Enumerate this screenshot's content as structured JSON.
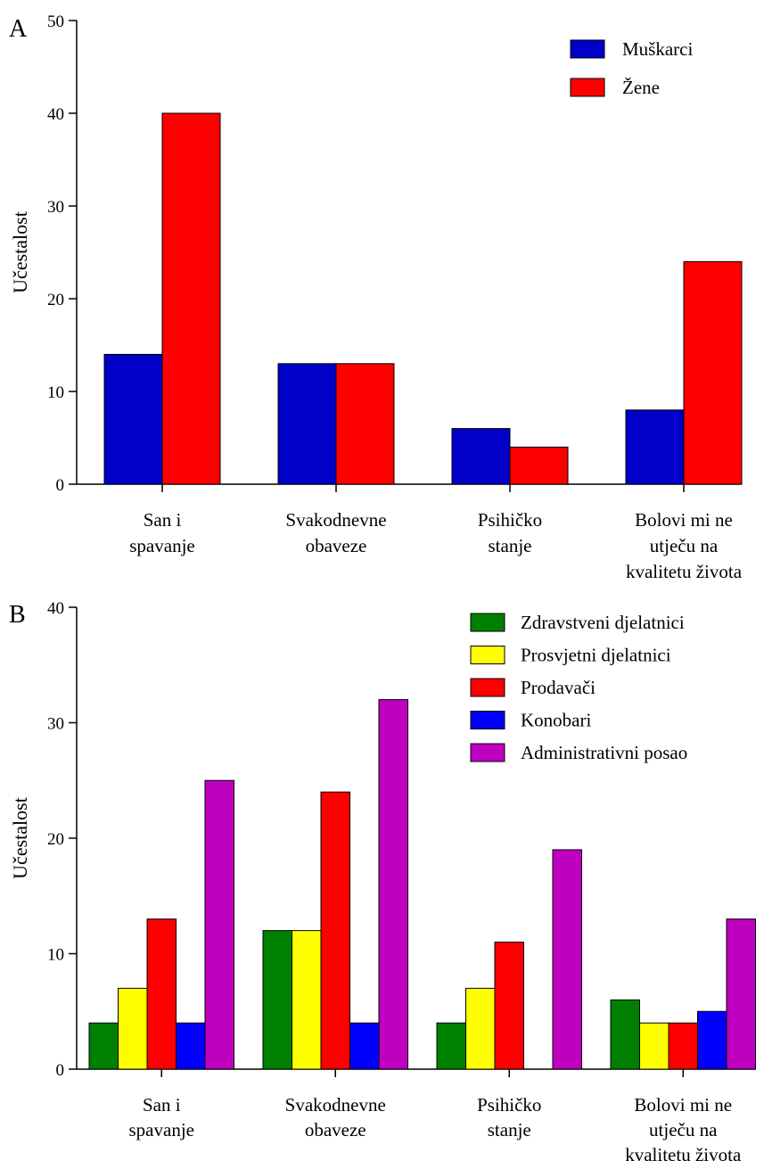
{
  "chart_data": [
    {
      "panel_label": "A",
      "type": "bar",
      "categories": [
        [
          "San i",
          "spavanje"
        ],
        [
          "Svakodnevne",
          "obaveze"
        ],
        [
          "Psihičko",
          "stanje"
        ],
        [
          "Bolovi mi ne",
          "utječu na",
          "kvalitetu života"
        ]
      ],
      "series": [
        {
          "name": "Muškarci",
          "color": "#0000c8",
          "values": [
            14,
            13,
            6,
            8
          ]
        },
        {
          "name": "Žene",
          "color": "#ff0000",
          "values": [
            40,
            13,
            4,
            24
          ]
        }
      ],
      "ylabel": "Učestalost",
      "ylim": [
        0,
        50
      ],
      "yticks": [
        0,
        10,
        20,
        30,
        40,
        50
      ],
      "legend": "top-right",
      "grid": false
    },
    {
      "panel_label": "B",
      "type": "bar",
      "categories": [
        [
          "San i",
          "spavanje"
        ],
        [
          "Svakodnevne",
          "obaveze"
        ],
        [
          "Psihičko",
          "stanje"
        ],
        [
          "Bolovi mi ne",
          "utječu na",
          "kvalitetu života"
        ]
      ],
      "series": [
        {
          "name": "Zdravstveni djelatnici",
          "color": "#008000",
          "values": [
            4,
            12,
            4,
            6
          ]
        },
        {
          "name": "Prosvjetni djelatnici",
          "color": "#ffff00",
          "values": [
            7,
            12,
            7,
            4
          ]
        },
        {
          "name": "Prodavači",
          "color": "#ff0000",
          "values": [
            13,
            24,
            11,
            4
          ]
        },
        {
          "name": "Konobari",
          "color": "#0000ff",
          "values": [
            4,
            4,
            0,
            5
          ]
        },
        {
          "name": "Administrativni posao",
          "color": "#c000c0",
          "values": [
            25,
            32,
            19,
            13
          ]
        }
      ],
      "ylabel": "Učestalost",
      "ylim": [
        0,
        40
      ],
      "yticks": [
        0,
        10,
        20,
        30,
        40
      ],
      "legend": "top-right",
      "grid": false
    }
  ]
}
